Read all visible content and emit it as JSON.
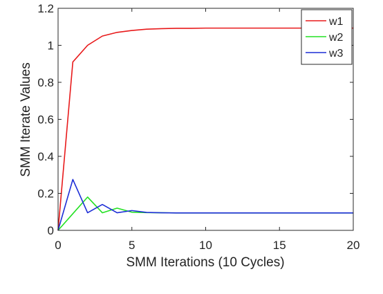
{
  "chart_data": {
    "type": "line",
    "xlabel": "SMM Iterations (10 Cycles)",
    "ylabel": "SMM Iterate Values",
    "xlim": [
      0,
      20
    ],
    "ylim": [
      0,
      1.2
    ],
    "xticks": [
      "0",
      "5",
      "10",
      "15",
      "20"
    ],
    "yticks": [
      "0",
      "0.2",
      "0.4",
      "0.6",
      "0.8",
      "1",
      "1.2"
    ],
    "grid": false,
    "legend_position": "top-right",
    "x": [
      0,
      1,
      2,
      3,
      4,
      5,
      6,
      7,
      8,
      9,
      10,
      11,
      12,
      13,
      14,
      15,
      16,
      17,
      18,
      19,
      20
    ],
    "series": [
      {
        "name": "w1",
        "color": "#e8191a",
        "values": [
          0,
          0.91,
          1.0,
          1.05,
          1.07,
          1.08,
          1.087,
          1.09,
          1.092,
          1.092,
          1.093,
          1.093,
          1.093,
          1.093,
          1.093,
          1.093,
          1.093,
          1.093,
          1.093,
          1.093,
          1.093
        ]
      },
      {
        "name": "w2",
        "color": "#22e022",
        "values": [
          0,
          0.09,
          0.18,
          0.095,
          0.12,
          0.098,
          0.096,
          0.095,
          0.094,
          0.094,
          0.094,
          0.094,
          0.094,
          0.094,
          0.094,
          0.094,
          0.094,
          0.094,
          0.094,
          0.094,
          0.094
        ]
      },
      {
        "name": "w3",
        "color": "#1c2dd6",
        "values": [
          0,
          0.275,
          0.095,
          0.14,
          0.095,
          0.107,
          0.097,
          0.095,
          0.094,
          0.094,
          0.094,
          0.094,
          0.094,
          0.094,
          0.094,
          0.094,
          0.094,
          0.094,
          0.094,
          0.094,
          0.094
        ]
      }
    ]
  }
}
